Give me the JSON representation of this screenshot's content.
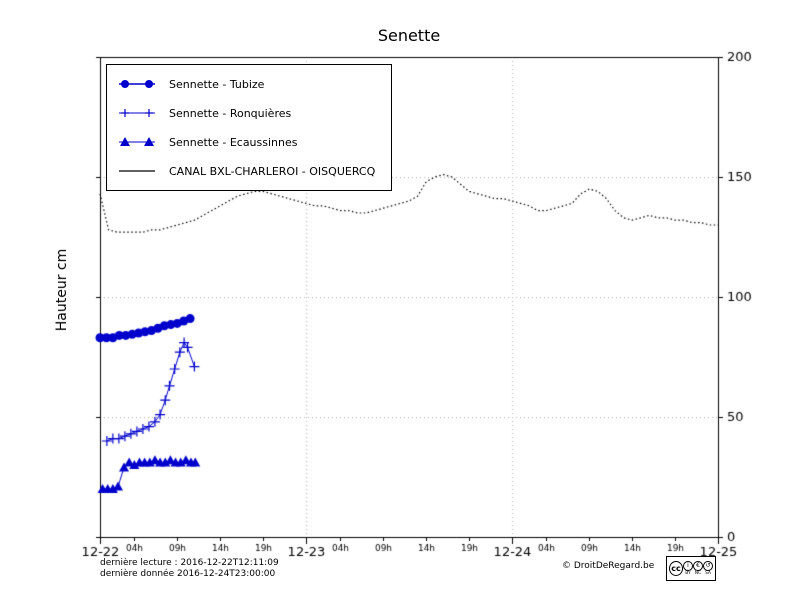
{
  "footer": {
    "line1": "dernière lecture : 2016-12-22T12:11:09",
    "line2": "dernière donnée  2016-12-24T23:00:00",
    "copyright": "© DroitDeRegard.be",
    "cc": {
      "logo": "cc",
      "items": [
        {
          "glyph": "i",
          "label": "BY"
        },
        {
          "glyph": "€",
          "label": "NC"
        },
        {
          "glyph": "↺",
          "label": "SA"
        }
      ]
    }
  },
  "colors": {
    "series_blue": "#0000cc",
    "canal_black": "#000000",
    "grid_gray": "#b0b0b0"
  },
  "chart_data": {
    "type": "line",
    "title": "Senette",
    "ylabel": "Hauteur cm",
    "xlim": [
      0,
      72
    ],
    "ylim": [
      0,
      200
    ],
    "grid": true,
    "legend_position": "upper-left",
    "yticks": [
      0,
      50,
      100,
      150,
      200
    ],
    "ytick_labels": [
      "0",
      "50",
      "100",
      "150",
      "200"
    ],
    "x_major_ticks": [
      {
        "hour": 0,
        "label": "12-22"
      },
      {
        "hour": 24,
        "label": "12-23"
      },
      {
        "hour": 48,
        "label": "12-24"
      },
      {
        "hour": 72,
        "label": "12-25"
      }
    ],
    "x_minor_ticks": [
      {
        "hour": 4,
        "label": "04h"
      },
      {
        "hour": 9,
        "label": "09h"
      },
      {
        "hour": 14,
        "label": "14h"
      },
      {
        "hour": 19,
        "label": "19h"
      },
      {
        "hour": 28,
        "label": "04h"
      },
      {
        "hour": 33,
        "label": "09h"
      },
      {
        "hour": 38,
        "label": "14h"
      },
      {
        "hour": 43,
        "label": "19h"
      },
      {
        "hour": 52,
        "label": "04h"
      },
      {
        "hour": 57,
        "label": "09h"
      },
      {
        "hour": 62,
        "label": "14h"
      },
      {
        "hour": 67,
        "label": "19h"
      }
    ],
    "series": [
      {
        "name": "Sennette - Tubize",
        "color": "#0000cc",
        "marker": "circle",
        "marker_size": 4.5,
        "linestyle": "solid",
        "linewidth": 1.5,
        "x": [
          0,
          0.75,
          1.5,
          2.25,
          3,
          3.75,
          4.5,
          5.25,
          6,
          6.75,
          7.5,
          8.25,
          9,
          9.75,
          10.5
        ],
        "y": [
          83,
          83,
          83,
          84,
          84,
          84.5,
          85,
          85.5,
          86,
          87,
          88,
          88.5,
          89,
          90,
          91
        ]
      },
      {
        "name": "Sennette - Ronquières",
        "color": "#0000cc",
        "marker": "plus",
        "marker_size": 5,
        "linestyle": "solid",
        "linewidth": 1,
        "x": [
          0.8,
          1.5,
          2.2,
          2.9,
          3.6,
          4.3,
          5,
          5.7,
          6.4,
          7,
          7.6,
          8.1,
          8.7,
          9.3,
          9.8,
          10.2,
          11
        ],
        "y": [
          40,
          41,
          41,
          42,
          43,
          44,
          45,
          46,
          48,
          51,
          57,
          63,
          70,
          77,
          81,
          79,
          71
        ]
      },
      {
        "name": "Sennette - Ecaussinnes",
        "color": "#0000cc",
        "marker": "triangle",
        "marker_size": 5,
        "linestyle": "solid",
        "linewidth": 1,
        "x": [
          0.3,
          0.9,
          1.5,
          2.1,
          2.8,
          3.4,
          4,
          4.6,
          5.2,
          5.8,
          6.4,
          7,
          7.6,
          8.2,
          8.8,
          9.4,
          10,
          10.6,
          11.1
        ],
        "y": [
          20,
          20,
          20,
          21,
          29,
          31,
          30,
          31,
          31,
          31,
          32,
          31,
          31,
          32,
          31,
          31,
          32,
          31,
          31
        ]
      },
      {
        "name": "CANAL BXL-CHARLEROI - OISQUERCQ",
        "color": "#000000",
        "marker": "none",
        "marker_size": 0,
        "linestyle": "dotted",
        "linewidth": 1.2,
        "x0": 0,
        "dx": 1,
        "y": [
          143,
          128,
          127,
          127,
          127,
          127,
          128,
          128,
          129,
          130,
          131,
          132,
          134,
          136,
          138,
          140,
          142,
          143,
          144,
          144,
          143,
          142,
          141,
          140,
          139,
          138,
          138,
          137,
          136,
          136,
          135,
          135,
          136,
          137,
          138,
          139,
          140,
          142,
          148,
          150,
          151,
          150,
          147,
          144,
          143,
          142,
          141,
          141,
          140,
          139,
          138,
          136,
          136,
          137,
          138,
          139,
          143,
          145,
          144,
          141,
          136,
          133,
          132,
          133,
          134,
          133,
          133,
          132,
          132,
          131,
          131,
          130,
          130
        ]
      }
    ]
  }
}
